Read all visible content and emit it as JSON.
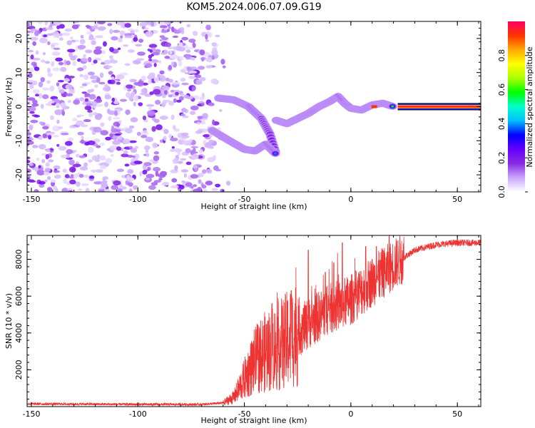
{
  "title": "KOM5.2024.006.07.09.G19",
  "chart_data": [
    {
      "type": "heatmap",
      "xlabel": "Height of straight line (km)",
      "ylabel": "Frequency (Hz)",
      "xlim": [
        -152,
        61
      ],
      "ylim": [
        -25,
        25
      ],
      "xticks": [
        -150,
        -100,
        -50,
        0,
        50
      ],
      "yticks": [
        -20,
        -10,
        0,
        10,
        20
      ],
      "colorbar": {
        "label": "Normalized spectral amplitude",
        "range": [
          0,
          1
        ],
        "ticks": [
          0.0,
          0.2,
          0.4,
          0.6,
          0.8
        ],
        "colors": [
          "#ffffff",
          "#c9a6ff",
          "#8a2be2",
          "#6600ff",
          "#0000ff",
          "#00bfff",
          "#00ffcc",
          "#00ff00",
          "#aaff00",
          "#ffff00",
          "#ffaa00",
          "#ff3300",
          "#ff0066"
        ]
      },
      "features": {
        "noise_region_x": [
          -150,
          -60
        ],
        "noise_freq_range": [
          -25,
          25
        ],
        "upper_branch": [
          [
            -62,
            2.5
          ],
          [
            -55,
            2.0
          ],
          [
            -48,
            0.0
          ],
          [
            -42,
            -3.5
          ],
          [
            -38,
            -8.0
          ],
          [
            -35,
            -14.0
          ]
        ],
        "lower_branch": [
          [
            -65,
            -7.0
          ],
          [
            -57,
            -10.0
          ],
          [
            -50,
            -12.5
          ],
          [
            -45,
            -13.0
          ],
          [
            -40,
            -11.0
          ],
          [
            -35,
            -14.0
          ]
        ],
        "main_trace": [
          [
            -35,
            -4.0
          ],
          [
            -30,
            -5.0
          ],
          [
            -25,
            -3.5
          ],
          [
            -20,
            -2.0
          ],
          [
            -15,
            0.0
          ],
          [
            -10,
            1.5
          ],
          [
            -6,
            3.0
          ],
          [
            -3,
            1.0
          ],
          [
            0,
            -0.5
          ],
          [
            5,
            -1.0
          ],
          [
            10,
            0.5
          ],
          [
            15,
            1.0
          ],
          [
            20,
            0.0
          ],
          [
            25,
            0.0
          ],
          [
            30,
            0.0
          ],
          [
            40,
            0.0
          ],
          [
            50,
            0.0
          ],
          [
            60,
            0.0
          ]
        ],
        "flat_line_x_start": 22
      }
    },
    {
      "type": "line",
      "xlabel": "Height of straight line (km)",
      "ylabel": "SNR (10 * v/v)",
      "xlim": [
        -152,
        61
      ],
      "ylim": [
        0,
        9300
      ],
      "xticks": [
        -150,
        -100,
        -50,
        0,
        50
      ],
      "yticks": [
        2000,
        4000,
        6000,
        8000
      ],
      "series": [
        {
          "color": "#ee3333",
          "envelope": [
            [
              -152,
              150
            ],
            [
              -100,
              120
            ],
            [
              -70,
              120
            ],
            [
              -60,
              200
            ],
            [
              -55,
              500
            ],
            [
              -50,
              1500
            ],
            [
              -45,
              2500
            ],
            [
              -40,
              3000
            ],
            [
              -35,
              3200
            ],
            [
              -30,
              3600
            ],
            [
              -20,
              4500
            ],
            [
              -10,
              5300
            ],
            [
              0,
              5800
            ],
            [
              10,
              6800
            ],
            [
              20,
              7700
            ],
            [
              30,
              8500
            ],
            [
              40,
              8800
            ],
            [
              50,
              8900
            ],
            [
              61,
              8900
            ]
          ],
          "spikes": [
            [
              -37,
              5600
            ],
            [
              -20,
              8500
            ],
            [
              -4,
              8900
            ],
            [
              7,
              8700
            ],
            [
              12,
              8700
            ],
            [
              18,
              9300
            ],
            [
              -8,
              7800
            ],
            [
              -12,
              7300
            ],
            [
              -28,
              6300
            ]
          ]
        }
      ]
    }
  ]
}
